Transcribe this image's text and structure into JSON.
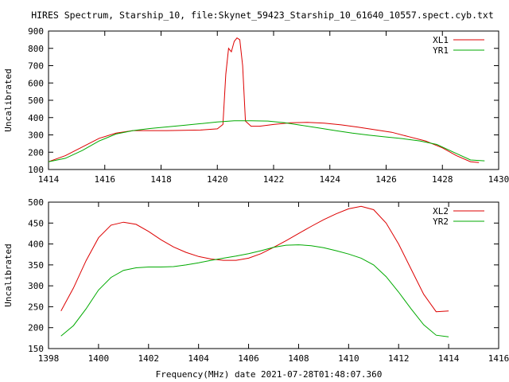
{
  "page": {
    "title": "HIRES Spectrum, Starship_10, file:Skynet_59423_Starship_10_61640_10557.spect.cyb.txt",
    "xlabel": "Frequency(MHz) date 2021-07-28T01:48:07.360"
  },
  "chart_data": [
    {
      "type": "line",
      "ylabel": "Uncalibrated",
      "xlim": [
        1414,
        1430
      ],
      "ylim": [
        100,
        900
      ],
      "xticks": [
        1414,
        1416,
        1418,
        1420,
        1422,
        1424,
        1426,
        1428,
        1430
      ],
      "yticks": [
        100,
        200,
        300,
        400,
        500,
        600,
        700,
        800,
        900
      ],
      "legend": "top-right",
      "series": [
        {
          "name": "XL1",
          "color": "#dd0000",
          "x": [
            1414.0,
            1414.6,
            1415.2,
            1415.8,
            1416.4,
            1417.0,
            1417.6,
            1418.2,
            1418.8,
            1419.4,
            1420.0,
            1420.2,
            1420.3,
            1420.4,
            1420.5,
            1420.6,
            1420.7,
            1420.8,
            1420.9,
            1421.0,
            1421.2,
            1421.5,
            1422.0,
            1422.6,
            1423.2,
            1423.8,
            1424.4,
            1425.0,
            1425.6,
            1426.2,
            1426.8,
            1427.4,
            1428.0,
            1428.5,
            1429.0,
            1429.3
          ],
          "y": [
            145,
            180,
            230,
            280,
            310,
            325,
            325,
            325,
            326,
            328,
            335,
            360,
            650,
            800,
            780,
            840,
            860,
            850,
            700,
            380,
            350,
            350,
            360,
            370,
            372,
            368,
            358,
            345,
            330,
            315,
            290,
            265,
            225,
            180,
            145,
            140
          ]
        },
        {
          "name": "YR1",
          "color": "#00aa00",
          "x": [
            1414.0,
            1414.6,
            1415.2,
            1415.8,
            1416.4,
            1417.0,
            1417.6,
            1418.2,
            1418.8,
            1419.4,
            1420.0,
            1420.6,
            1421.2,
            1421.8,
            1422.4,
            1423.0,
            1423.6,
            1424.2,
            1424.8,
            1425.4,
            1426.0,
            1426.6,
            1427.2,
            1427.8,
            1428.4,
            1429.0,
            1429.5
          ],
          "y": [
            145,
            165,
            210,
            265,
            305,
            325,
            337,
            346,
            355,
            365,
            375,
            382,
            382,
            380,
            370,
            355,
            340,
            325,
            310,
            298,
            288,
            278,
            265,
            245,
            200,
            155,
            150
          ]
        }
      ]
    },
    {
      "type": "line",
      "ylabel": "Uncalibrated",
      "xlim": [
        1398,
        1416
      ],
      "ylim": [
        150,
        500
      ],
      "xticks": [
        1398,
        1400,
        1402,
        1404,
        1406,
        1408,
        1410,
        1412,
        1414,
        1416
      ],
      "yticks": [
        150,
        200,
        250,
        300,
        350,
        400,
        450,
        500
      ],
      "legend": "top-right",
      "series": [
        {
          "name": "XL2",
          "color": "#dd0000",
          "x": [
            1398.5,
            1399.0,
            1399.5,
            1400.0,
            1400.5,
            1401.0,
            1401.5,
            1402.0,
            1402.5,
            1403.0,
            1403.5,
            1404.0,
            1404.5,
            1405.0,
            1405.5,
            1406.0,
            1406.5,
            1407.0,
            1407.5,
            1408.0,
            1408.5,
            1409.0,
            1409.5,
            1410.0,
            1410.5,
            1411.0,
            1411.5,
            1412.0,
            1412.5,
            1413.0,
            1413.5,
            1414.0
          ],
          "y": [
            240,
            295,
            360,
            415,
            445,
            452,
            447,
            430,
            410,
            393,
            380,
            370,
            364,
            361,
            361,
            366,
            377,
            392,
            408,
            425,
            442,
            458,
            472,
            484,
            490,
            482,
            450,
            400,
            340,
            280,
            238,
            240
          ]
        },
        {
          "name": "YR2",
          "color": "#00aa00",
          "x": [
            1398.5,
            1399.0,
            1399.5,
            1400.0,
            1400.5,
            1401.0,
            1401.5,
            1402.0,
            1402.5,
            1403.0,
            1403.5,
            1404.0,
            1404.5,
            1405.0,
            1405.5,
            1406.0,
            1406.5,
            1407.0,
            1407.5,
            1408.0,
            1408.5,
            1409.0,
            1409.5,
            1410.0,
            1410.5,
            1411.0,
            1411.5,
            1412.0,
            1412.5,
            1413.0,
            1413.5,
            1414.0
          ],
          "y": [
            180,
            205,
            245,
            290,
            320,
            337,
            343,
            345,
            345,
            346,
            350,
            355,
            361,
            366,
            371,
            377,
            384,
            392,
            397,
            398,
            396,
            391,
            384,
            376,
            366,
            350,
            322,
            285,
            245,
            207,
            182,
            178
          ]
        }
      ]
    }
  ]
}
